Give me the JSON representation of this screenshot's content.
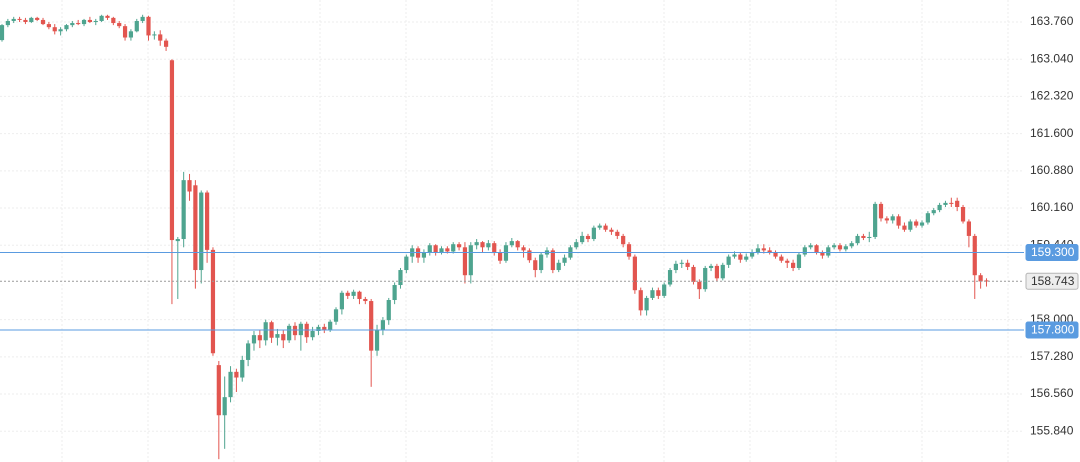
{
  "chart_data": {
    "type": "candlestick",
    "up_color": "#4ea48f",
    "down_color": "#e2554f",
    "grid": true,
    "ylim": [
      155.245,
      164.186
    ],
    "yticks": [
      {
        "value": 163.76,
        "label": "163.760"
      },
      {
        "value": 163.04,
        "label": "163.040"
      },
      {
        "value": 162.32,
        "label": "162.320"
      },
      {
        "value": 161.6,
        "label": "161.600"
      },
      {
        "value": 160.88,
        "label": "160.880"
      },
      {
        "value": 160.16,
        "label": "160.160"
      },
      {
        "value": 159.44,
        "label": "159.440"
      },
      {
        "value": 158,
        "label": "158.000"
      },
      {
        "value": 157.28,
        "label": "157.280"
      },
      {
        "value": 156.56,
        "label": "156.560"
      },
      {
        "value": 155.84,
        "label": "155.840"
      }
    ],
    "price_lines": [
      {
        "value": 159.3,
        "label": "159.300",
        "color": "#5a9be0",
        "style": "solid"
      },
      {
        "value": 157.8,
        "label": "157.800",
        "color": "#5a9be0",
        "style": "solid"
      },
      {
        "value": 158.743,
        "label": "158.743",
        "color": "#9a9a9a",
        "style": "dashed"
      }
    ],
    "candles": [
      [
        163.41,
        163.72,
        163.38,
        163.7
      ],
      [
        163.7,
        163.82,
        163.66,
        163.78
      ],
      [
        163.78,
        163.86,
        163.74,
        163.82
      ],
      [
        163.82,
        163.86,
        163.76,
        163.8
      ],
      [
        163.8,
        163.84,
        163.72,
        163.76
      ],
      [
        163.76,
        163.86,
        163.74,
        163.84
      ],
      [
        163.84,
        163.86,
        163.78,
        163.8
      ],
      [
        163.8,
        163.84,
        163.7,
        163.72
      ],
      [
        163.72,
        163.76,
        163.62,
        163.66
      ],
      [
        163.66,
        163.72,
        163.52,
        163.58
      ],
      [
        163.58,
        163.66,
        163.5,
        163.62
      ],
      [
        163.62,
        163.72,
        163.58,
        163.7
      ],
      [
        163.7,
        163.78,
        163.66,
        163.74
      ],
      [
        163.74,
        163.8,
        163.7,
        163.72
      ],
      [
        163.72,
        163.82,
        163.68,
        163.8
      ],
      [
        163.8,
        163.86,
        163.74,
        163.76
      ],
      [
        163.76,
        163.82,
        163.7,
        163.78
      ],
      [
        163.78,
        163.9,
        163.76,
        163.88
      ],
      [
        163.88,
        163.9,
        163.8,
        163.84
      ],
      [
        163.84,
        163.86,
        163.7,
        163.74
      ],
      [
        163.74,
        163.78,
        163.64,
        163.68
      ],
      [
        163.68,
        163.72,
        163.4,
        163.46
      ],
      [
        163.46,
        163.62,
        163.4,
        163.58
      ],
      [
        163.58,
        163.82,
        163.56,
        163.78
      ],
      [
        163.78,
        163.9,
        163.74,
        163.86
      ],
      [
        163.86,
        163.88,
        163.4,
        163.5
      ],
      [
        163.5,
        163.58,
        163.42,
        163.52
      ],
      [
        163.52,
        163.6,
        163.3,
        163.4
      ],
      [
        163.4,
        163.44,
        163.2,
        163.28
      ],
      [
        163.02,
        163.04,
        158.3,
        159.54
      ],
      [
        159.52,
        159.6,
        158.4,
        159.56
      ],
      [
        159.56,
        160.86,
        159.4,
        160.7
      ],
      [
        160.7,
        160.82,
        160.3,
        160.48
      ],
      [
        160.6,
        160.7,
        158.6,
        158.96
      ],
      [
        158.96,
        160.5,
        158.7,
        160.46
      ],
      [
        160.46,
        160.5,
        159.1,
        159.35
      ],
      [
        159.35,
        159.4,
        157.3,
        157.35
      ],
      [
        157.12,
        157.2,
        155.3,
        156.15
      ],
      [
        156.15,
        156.9,
        155.5,
        156.5
      ],
      [
        156.5,
        157.1,
        156.4,
        156.99
      ],
      [
        156.99,
        157.05,
        156.6,
        156.88
      ],
      [
        156.88,
        157.3,
        156.8,
        157.22
      ],
      [
        157.22,
        157.6,
        157.1,
        157.54
      ],
      [
        157.54,
        157.78,
        157.4,
        157.7
      ],
      [
        157.7,
        157.8,
        157.45,
        157.6
      ],
      [
        157.6,
        158.0,
        157.5,
        157.95
      ],
      [
        157.95,
        157.98,
        157.55,
        157.65
      ],
      [
        157.65,
        157.82,
        157.5,
        157.72
      ],
      [
        157.72,
        157.8,
        157.45,
        157.6
      ],
      [
        157.6,
        157.92,
        157.55,
        157.88
      ],
      [
        157.88,
        157.95,
        157.6,
        157.7
      ],
      [
        157.7,
        157.96,
        157.4,
        157.92
      ],
      [
        157.92,
        157.96,
        157.55,
        157.66
      ],
      [
        157.66,
        157.86,
        157.6,
        157.78
      ],
      [
        157.78,
        157.9,
        157.7,
        157.86
      ],
      [
        157.86,
        157.92,
        157.74,
        157.8
      ],
      [
        157.8,
        158.0,
        157.76,
        157.96
      ],
      [
        157.96,
        158.24,
        157.9,
        158.2
      ],
      [
        158.2,
        158.56,
        158.1,
        158.52
      ],
      [
        158.52,
        158.56,
        158.4,
        158.46
      ],
      [
        158.46,
        158.58,
        158.4,
        158.54
      ],
      [
        158.54,
        158.56,
        158.3,
        158.4
      ],
      [
        158.4,
        158.44,
        158.3,
        158.36
      ],
      [
        158.36,
        158.4,
        156.7,
        157.4
      ],
      [
        157.4,
        157.9,
        157.3,
        157.8
      ],
      [
        157.8,
        158.05,
        157.7,
        157.99
      ],
      [
        157.99,
        158.42,
        157.9,
        158.38
      ],
      [
        158.38,
        158.72,
        158.3,
        158.67
      ],
      [
        158.67,
        159.0,
        158.6,
        158.96
      ],
      [
        158.96,
        159.26,
        158.9,
        159.22
      ],
      [
        159.22,
        159.44,
        159.1,
        159.38
      ],
      [
        159.38,
        159.42,
        159.1,
        159.2
      ],
      [
        159.2,
        159.36,
        159.1,
        159.3
      ],
      [
        159.3,
        159.48,
        159.24,
        159.44
      ],
      [
        159.44,
        159.46,
        159.24,
        159.3
      ],
      [
        159.3,
        159.42,
        159.26,
        159.38
      ],
      [
        159.38,
        159.42,
        159.28,
        159.32
      ],
      [
        159.32,
        159.5,
        159.28,
        159.46
      ],
      [
        159.46,
        159.5,
        159.34,
        159.4
      ],
      [
        159.4,
        159.5,
        158.7,
        158.86
      ],
      [
        158.86,
        159.5,
        158.7,
        159.44
      ],
      [
        159.44,
        159.56,
        159.36,
        159.5
      ],
      [
        159.5,
        159.52,
        159.3,
        159.4
      ],
      [
        159.4,
        159.54,
        159.34,
        159.48
      ],
      [
        159.48,
        159.52,
        159.24,
        159.3
      ],
      [
        159.3,
        159.36,
        159.08,
        159.14
      ],
      [
        159.14,
        159.5,
        159.1,
        159.44
      ],
      [
        159.44,
        159.58,
        159.4,
        159.52
      ],
      [
        159.52,
        159.54,
        159.34,
        159.4
      ],
      [
        159.4,
        159.44,
        159.2,
        159.34
      ],
      [
        159.34,
        159.38,
        159.1,
        159.15
      ],
      [
        159.15,
        159.2,
        158.82,
        158.96
      ],
      [
        158.96,
        159.3,
        158.9,
        159.26
      ],
      [
        159.26,
        159.4,
        159.2,
        159.34
      ],
      [
        159.34,
        159.38,
        158.9,
        158.96
      ],
      [
        158.96,
        159.16,
        158.92,
        159.1
      ],
      [
        159.1,
        159.26,
        159.04,
        159.2
      ],
      [
        159.2,
        159.44,
        159.16,
        159.4
      ],
      [
        159.4,
        159.56,
        159.36,
        159.5
      ],
      [
        159.5,
        159.7,
        159.46,
        159.62
      ],
      [
        159.62,
        159.66,
        159.5,
        159.56
      ],
      [
        159.56,
        159.82,
        159.52,
        159.78
      ],
      [
        159.78,
        159.86,
        159.74,
        159.82
      ],
      [
        159.82,
        159.86,
        159.7,
        159.74
      ],
      [
        159.74,
        159.78,
        159.64,
        159.7
      ],
      [
        159.7,
        159.74,
        159.56,
        159.62
      ],
      [
        159.62,
        159.66,
        159.4,
        159.46
      ],
      [
        159.46,
        159.5,
        159.16,
        159.22
      ],
      [
        159.22,
        159.26,
        158.5,
        158.57
      ],
      [
        158.57,
        158.62,
        158.08,
        158.18
      ],
      [
        158.18,
        158.46,
        158.08,
        158.42
      ],
      [
        158.42,
        158.62,
        158.38,
        158.57
      ],
      [
        158.57,
        158.62,
        158.4,
        158.46
      ],
      [
        158.46,
        158.72,
        158.42,
        158.68
      ],
      [
        158.68,
        159.0,
        158.64,
        158.96
      ],
      [
        158.96,
        159.14,
        158.9,
        159.08
      ],
      [
        159.08,
        159.16,
        159.0,
        159.1
      ],
      [
        159.1,
        159.16,
        158.96,
        159.02
      ],
      [
        159.02,
        159.06,
        158.68,
        158.73
      ],
      [
        158.73,
        158.78,
        158.4,
        158.59
      ],
      [
        158.59,
        159.04,
        158.54,
        159.0
      ],
      [
        159.0,
        159.08,
        158.94,
        159.04
      ],
      [
        159.04,
        159.08,
        158.74,
        158.8
      ],
      [
        158.8,
        159.1,
        158.76,
        159.06
      ],
      [
        159.06,
        159.26,
        159.0,
        159.22
      ],
      [
        159.22,
        159.32,
        159.18,
        159.26
      ],
      [
        159.26,
        159.3,
        159.1,
        159.16
      ],
      [
        159.16,
        159.28,
        159.12,
        159.22
      ],
      [
        159.22,
        159.36,
        159.18,
        159.3
      ],
      [
        159.3,
        159.46,
        159.26,
        159.38
      ],
      [
        159.38,
        159.46,
        159.28,
        159.34
      ],
      [
        159.34,
        159.4,
        159.26,
        159.3
      ],
      [
        159.3,
        159.34,
        159.18,
        159.22
      ],
      [
        159.22,
        159.26,
        159.1,
        159.14
      ],
      [
        159.14,
        159.18,
        159.0,
        159.1
      ],
      [
        159.1,
        159.16,
        158.94,
        159.0
      ],
      [
        159.0,
        159.3,
        158.96,
        159.26
      ],
      [
        159.26,
        159.44,
        159.22,
        159.4
      ],
      [
        159.4,
        159.48,
        159.36,
        159.44
      ],
      [
        159.44,
        159.46,
        159.26,
        159.3
      ],
      [
        159.3,
        159.34,
        159.18,
        159.24
      ],
      [
        159.24,
        159.44,
        159.2,
        159.4
      ],
      [
        159.4,
        159.48,
        159.36,
        159.44
      ],
      [
        159.44,
        159.48,
        159.32,
        159.36
      ],
      [
        159.36,
        159.46,
        159.32,
        159.42
      ],
      [
        159.42,
        159.52,
        159.38,
        159.48
      ],
      [
        159.48,
        159.66,
        159.44,
        159.62
      ],
      [
        159.62,
        159.66,
        159.54,
        159.58
      ],
      [
        159.58,
        159.7,
        159.5,
        159.6
      ],
      [
        159.6,
        160.28,
        159.56,
        160.24
      ],
      [
        160.24,
        160.28,
        159.9,
        159.96
      ],
      [
        159.96,
        160.0,
        159.86,
        159.92
      ],
      [
        159.92,
        160.04,
        159.86,
        160.0
      ],
      [
        160.0,
        160.04,
        159.76,
        159.82
      ],
      [
        159.82,
        159.88,
        159.7,
        159.74
      ],
      [
        159.74,
        159.94,
        159.7,
        159.9
      ],
      [
        159.9,
        159.94,
        159.78,
        159.82
      ],
      [
        159.82,
        159.92,
        159.78,
        159.88
      ],
      [
        159.88,
        160.1,
        159.84,
        160.06
      ],
      [
        160.06,
        160.16,
        160.02,
        160.12
      ],
      [
        160.12,
        160.26,
        160.08,
        160.22
      ],
      [
        160.22,
        160.3,
        160.18,
        160.26
      ],
      [
        160.26,
        160.36,
        160.18,
        160.24
      ],
      [
        160.3,
        160.36,
        160.1,
        160.18
      ],
      [
        160.18,
        160.22,
        159.86,
        159.9
      ],
      [
        159.9,
        159.94,
        159.4,
        159.62
      ],
      [
        159.62,
        159.66,
        158.4,
        158.86
      ],
      [
        158.86,
        158.9,
        158.6,
        158.74
      ],
      [
        158.76,
        158.8,
        158.64,
        158.74
      ]
    ]
  }
}
